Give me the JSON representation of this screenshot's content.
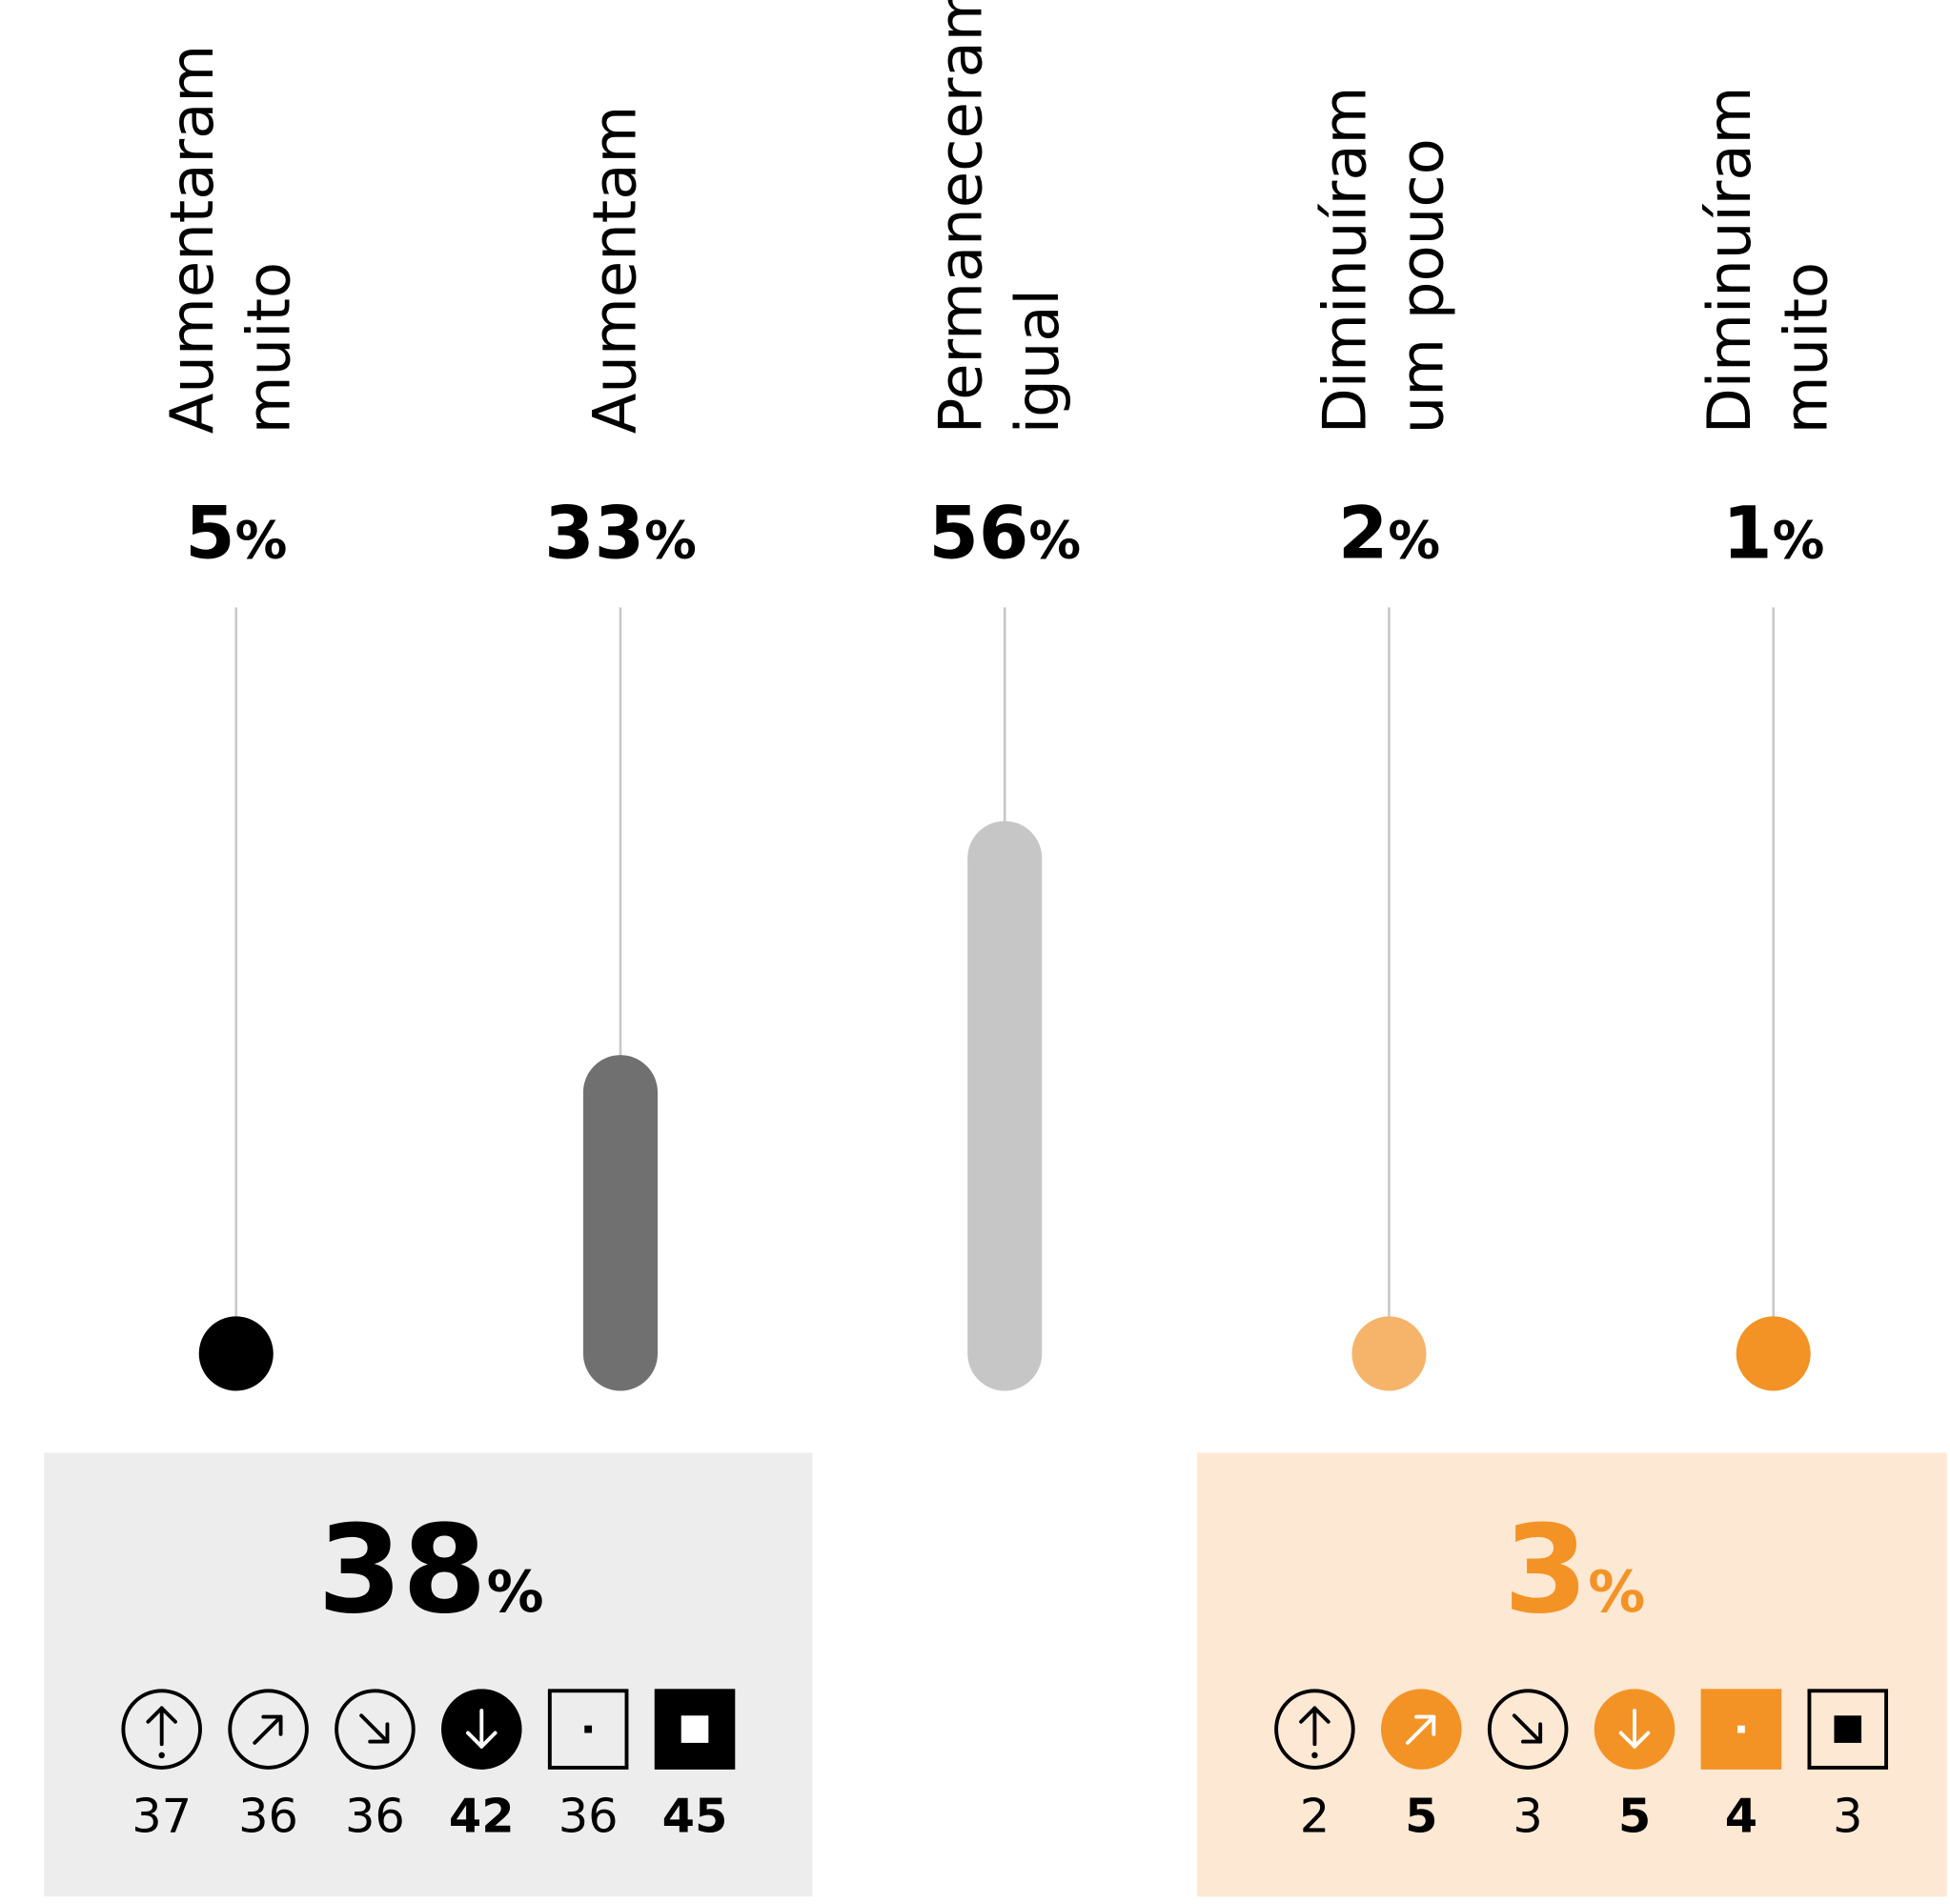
{
  "chart_data": {
    "type": "bar",
    "categories": [
      [
        "Aumentaram",
        "muito"
      ],
      [
        "Aumentam"
      ],
      [
        "Permaneceram",
        "igual"
      ],
      [
        "Diminuíram",
        "um pouco"
      ],
      [
        "Diminuíram",
        "muito"
      ]
    ],
    "values": [
      5,
      33,
      56,
      2,
      1
    ],
    "unit": "%",
    "colors": [
      "#000000",
      "#707070",
      "#c6c6c6",
      "#f5b46a",
      "#f39325"
    ],
    "ylim": [
      0,
      77
    ]
  },
  "summaries": [
    {
      "value": 38,
      "color": "#000000",
      "background": "#ededed",
      "fill": "#000000",
      "items": [
        37,
        36,
        36,
        42,
        36,
        45
      ],
      "highlighted": [
        false,
        false,
        false,
        true,
        false,
        true
      ]
    },
    {
      "value": 3,
      "color": "#f39325",
      "background": "#fde8d4",
      "fill": "#f39325",
      "items": [
        2,
        5,
        3,
        5,
        4,
        3
      ],
      "highlighted": [
        false,
        true,
        false,
        true,
        true,
        false
      ]
    }
  ]
}
